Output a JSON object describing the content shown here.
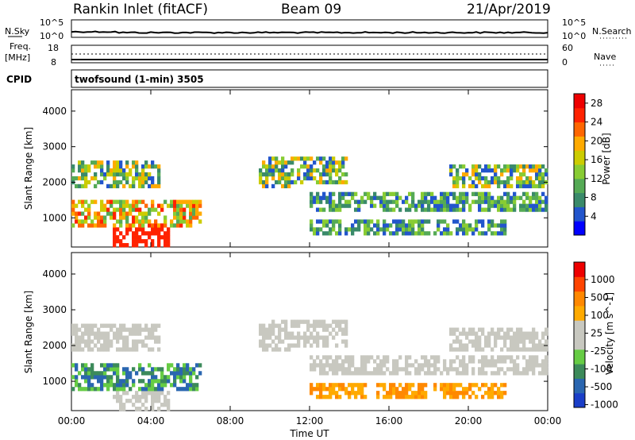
{
  "header": {
    "station": "Rankin Inlet (fitACF)",
    "beam": "Beam 09",
    "date": "21/Apr/2019"
  },
  "status_panels": {
    "nsky_label": "N.Sky",
    "nsearch_label": "N.Search",
    "sky_ticks": [
      "10^5",
      "10^0"
    ],
    "freq_label": "Freq.",
    "freq_unit": "[MHz]",
    "freq_ticks": [
      "18",
      "8"
    ],
    "nave_label": "Nave",
    "nave_ticks": [
      "60",
      "0"
    ],
    "cpid_label": "CPID",
    "cpid_text": "twofsound (1-min) 3505"
  },
  "colors": {
    "power_scale": [
      "#0000ff",
      "#2255cc",
      "#3a8a6a",
      "#55aa55",
      "#88cc33",
      "#cccc00",
      "#ffaa00",
      "#ff6600",
      "#ff2200",
      "#ee0000"
    ],
    "velocity_scale": [
      "#1a3ec8",
      "#2a66b0",
      "#3c8a5a",
      "#66cc44",
      "#c8c8c0",
      "#c8c8c0",
      "#ffaa00",
      "#ff8800",
      "#ff4400",
      "#ee0000"
    ]
  },
  "chart_data": [
    {
      "type": "heatmap",
      "name": "power",
      "x_ticks": [
        "00:00",
        "04:00",
        "08:00",
        "12:00",
        "16:00",
        "20:00",
        "00:00"
      ],
      "y_ticks": [
        "1000",
        "2000",
        "3000",
        "4000"
      ],
      "ylabel": "Slant Range [km]",
      "ylim": [
        180,
        4600
      ],
      "colorbar_label": "Power [dB]",
      "colorbar_ticks": [
        "4",
        "8",
        "12",
        "16",
        "20",
        "24",
        "28"
      ],
      "colorbar_range": [
        0,
        30
      ]
    },
    {
      "type": "heatmap",
      "name": "velocity",
      "x_ticks": [
        "00:00",
        "04:00",
        "08:00",
        "12:00",
        "16:00",
        "20:00",
        "00:00"
      ],
      "y_ticks": [
        "1000",
        "2000",
        "3000",
        "4000"
      ],
      "ylabel": "Slant Range [km]",
      "xlabel": "Time UT",
      "ylim": [
        180,
        4600
      ],
      "colorbar_label": "Velocity [m s^-1]",
      "colorbar_ticks": [
        "1000",
        "500",
        "100",
        "25",
        "-25",
        "-100",
        "-500",
        "-1000"
      ]
    }
  ]
}
